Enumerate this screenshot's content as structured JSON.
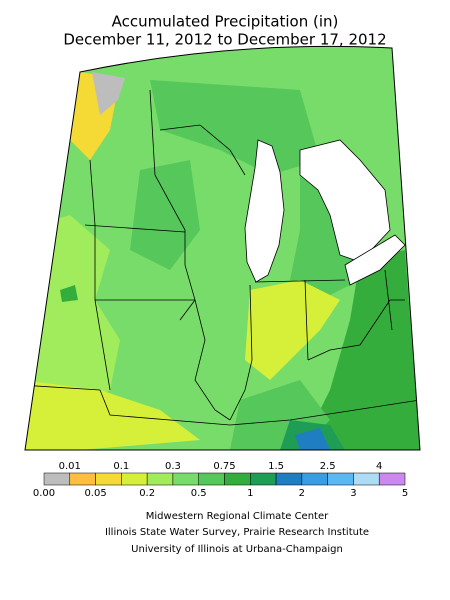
{
  "header": {
    "title_lines": [
      "Accumulated Precipitation (in)",
      "December 11, 2012 to December 17, 2012"
    ]
  },
  "legend": {
    "labels": [
      "0.00",
      "0.01",
      "0.05",
      "0.1",
      "0.2",
      "0.3",
      "0.5",
      "0.75",
      "1",
      "1.5",
      "2",
      "2.5",
      "3",
      "4",
      "5"
    ],
    "colors": [
      "#bdbdbd",
      "#ffbe40",
      "#f5d935",
      "#d6f03a",
      "#a0ec5c",
      "#78dc6a",
      "#56c75a",
      "#35ad3d",
      "#1f9d55",
      "#1f7ec2",
      "#3a9de2",
      "#5cb8f0",
      "#acdcf6",
      "#cc88ee"
    ]
  },
  "credits": [
    "Midwestern Regional Climate Center",
    "Illinois State Water Survey, Prairie Research Institute",
    "University of Illinois at Urbana-Champaign"
  ]
}
